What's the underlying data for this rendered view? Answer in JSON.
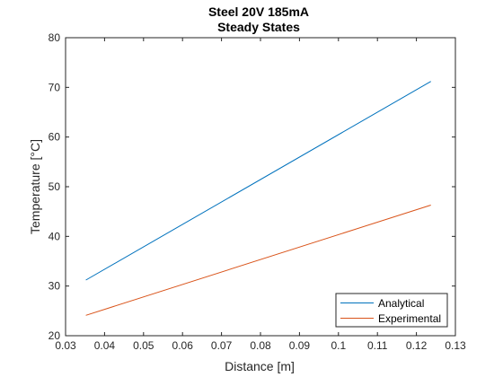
{
  "chart_data": {
    "type": "line",
    "title": "Steel 20V 185mA",
    "subtitle": "Steady States",
    "xlabel": "Distance [m]",
    "ylabel": "Temperature [°C]",
    "xlim": [
      0.03,
      0.13
    ],
    "ylim": [
      20,
      80
    ],
    "xticks": [
      0.03,
      0.04,
      0.05,
      0.06,
      0.07,
      0.08,
      0.09,
      0.1,
      0.11,
      0.12,
      0.13
    ],
    "xtick_labels": [
      "0.03",
      "0.04",
      "0.05",
      "0.06",
      "0.07",
      "0.08",
      "0.09",
      "0.1",
      "0.11",
      "0.12",
      "0.13"
    ],
    "yticks": [
      20,
      30,
      40,
      50,
      60,
      70,
      80
    ],
    "ytick_labels": [
      "20",
      "30",
      "40",
      "50",
      "60",
      "70",
      "80"
    ],
    "grid": false,
    "legend_position": "bottom-right",
    "series": [
      {
        "name": "Analytical",
        "color": "#0072bd",
        "x": [
          0.0352,
          0.1237
        ],
        "y": [
          31.2,
          71.2
        ]
      },
      {
        "name": "Experimental",
        "color": "#d95319",
        "x": [
          0.0352,
          0.1237
        ],
        "y": [
          24.1,
          46.3
        ]
      }
    ]
  }
}
